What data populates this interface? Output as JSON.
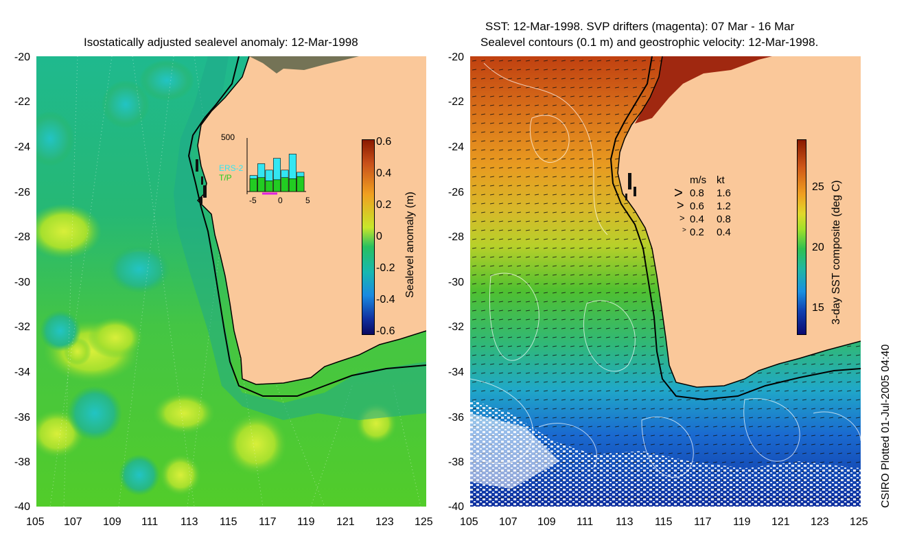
{
  "left": {
    "title": "Isostatically adjusted sealevel anomaly: 12-Mar-1998",
    "x_ticks": [
      "105",
      "107",
      "109",
      "111",
      "113",
      "115",
      "117",
      "119",
      "121",
      "123",
      "125"
    ],
    "y_ticks": [
      "-20",
      "-22",
      "-24",
      "-26",
      "-28",
      "-30",
      "-32",
      "-34",
      "-36",
      "-38",
      "-40"
    ],
    "colorbar_label": "Sealevel anomaly (m)",
    "colorbar_ticks": [
      "0.6",
      "0.4",
      "0.2",
      "0",
      "-0.2",
      "-0.4",
      "-0.6"
    ],
    "inset": {
      "ymax_label": "500",
      "x_ticks": [
        "-5",
        "0",
        "5"
      ],
      "legend_ers": "ERS-2",
      "legend_tp": "T/P",
      "ers_values": [
        150,
        260,
        200,
        310,
        200,
        350,
        180
      ],
      "tp_values": [
        120,
        130,
        100,
        110,
        130,
        120,
        140
      ],
      "ymax": 500,
      "color_ers": "#33e6f2",
      "color_tp": "#22cc22"
    }
  },
  "right": {
    "title_line1": "SST: 12-Mar-1998. SVP drifters (magenta): 07 Mar - 16 Mar",
    "title_line2": "Sealevel contours (0.1 m) and geostrophic velocity: 12-Mar-1998.",
    "x_ticks": [
      "105",
      "107",
      "109",
      "111",
      "113",
      "115",
      "117",
      "119",
      "121",
      "123",
      "125"
    ],
    "y_ticks": [
      "-20",
      "-22",
      "-24",
      "-26",
      "-28",
      "-30",
      "-32",
      "-34",
      "-36",
      "-38",
      "-40"
    ],
    "colorbar_label": "3-day SST composite (deg C)",
    "colorbar_ticks": [
      "25",
      "20",
      "15"
    ],
    "velocity_key": {
      "header_ms": "m/s",
      "header_kt": "kt",
      "rows": [
        {
          "ms": "0.8",
          "kt": "1.6"
        },
        {
          "ms": "0.6",
          "kt": "1.2"
        },
        {
          "ms": "0.4",
          "kt": "0.8"
        },
        {
          "ms": "0.2",
          "kt": "0.4"
        }
      ]
    }
  },
  "credit": "CSIRO Plotted 01-Jul-2005 04:40",
  "colors": {
    "land": "#fac89a",
    "ocean_green": "#2bb85a",
    "ocean_teal": "#20b894",
    "sst_red": "#b83010"
  }
}
